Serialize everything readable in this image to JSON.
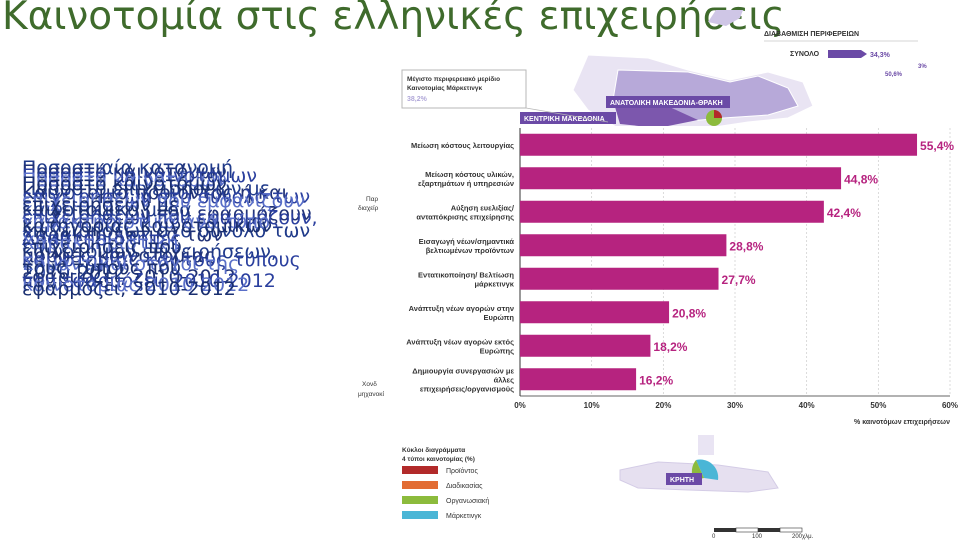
{
  "slide": {
    "title": "Καινοτομία στις ελληνικές επιχειρήσεις"
  },
  "captions": [
    {
      "lines": [
        "Ποσοστιαία κατανομή",
        "Ποσοστό επιχειρήσεων με",
        "καινοτομικό μέσα",
        "επιχειρήσεων στο σύνολο των",
        "καινοτόμων επιχειρήσεων,",
        "2010-2012"
      ],
      "color": "#1f3a8a"
    },
    {
      "lines": [
        "Ποσοστό καινοτόμων",
        "Καινοτομία προϊόντος ή και",
        "επιχειρήσεων που εφαρμόζουν",
        "Χαρακτηριστικά των",
        "μορφές καινοτομίας",
        "εφαρμόζει, 2010-2012"
      ],
      "color": "#223377"
    },
    {
      "lines": [
        "Ποσοστό μη καινοτόμων",
        "επιχειρήσεων στο σύνολο των",
        "επιχειρήσεων που εφαρμόζουν,",
        "Δραστηριότητες",
        "καινοτομίας και τους τύπους",
        "που εφαρμόζει, 2010-2012"
      ],
      "color": "#2a3f9e"
    },
    {
      "lines": [
        "Ποσοστό καινοτόμων",
        "επιχειρήσεων που εμφανίζουν",
        "χαρακτηριστικά ανά τύπο",
        "Χαρακτηριστική",
        "Σημαντικοί στόχοι της",
        "καινοτομίας 2010-2012"
      ],
      "color": "#5a6fc8"
    },
    {
      "lines": [
        "Ποσοστό καινοτόμων",
        "επιχειρήσεων με",
        "κατηγορίας καινοτομικών",
        "επιχειρήσεις που",
        "τους τύπους που",
        "εφαρμόζει, 2010-2012"
      ],
      "color": "#1a2f70"
    }
  ],
  "map": {
    "panel_title": "ΔΙΑΒΑΘΜΙΣΗ ΠΕΡΙΦΕΡΕΙΩΝ",
    "total_label": "ΣΥΝΟΛΟ",
    "total_value": "34,3%",
    "aux_value_1": "50,6%",
    "aux_value_2": "3%",
    "callout_title": "Μέγιστο περιφερειακό μερίδιο Καινοτομίας Μάρκετινγκ",
    "callout_value": "38,2%",
    "region_east": "ΑΝΑΤΟΛΙΚΗ ΜΑΚΕΔΟΝΙΑ-ΘΡΑΚΗ",
    "region_central": "ΚΕΝΤΡΙΚΗ ΜΑΚΕΔΟΝΙΑ",
    "region_crete": "ΚΡΗΤΗ",
    "left_cut_1": "Παρ",
    "left_cut_2": "διαχείρ",
    "left_cut_3": "Χονδ",
    "left_cut_4": "μηχανοκί",
    "legend_title": "Κύκλοι διαγράμματα 4 τύποι καινοτομίας (%)",
    "legend": [
      {
        "label": "Προϊόντος",
        "color": "#b22a2a"
      },
      {
        "label": "Διαδικασίας",
        "color": "#e26c33"
      },
      {
        "label": "Οργανωσιακή",
        "color": "#8cbb3c"
      },
      {
        "label": "Μάρκετινγκ",
        "color": "#4ab6d6"
      }
    ],
    "scale": [
      "0",
      "100",
      "200χλμ."
    ]
  },
  "chart_data": {
    "type": "bar",
    "orientation": "horizontal",
    "categories": [
      "Μείωση κόστους λειτουργίας",
      "Μείωση κόστους υλικών, εξαρτημάτων ή υπηρεσιών",
      "Αύξηση ευελιξίας/ ανταπόκρισης επιχείρησης",
      "Εισαγωγή νέων/σημαντικά βελτιωμένων προϊόντων",
      "Εντατικοποίηση/ Βελτίωση μάρκετινγκ",
      "Ανάπτυξη νέων αγορών στην Ευρώπη",
      "Ανάπτυξη νέων αγορών εκτός Ευρώπης",
      "Δημιουργία συνεργασιών με άλλες επιχειρήσεις/οργανισμούς"
    ],
    "values": [
      55.4,
      44.8,
      42.4,
      28.8,
      27.7,
      20.8,
      18.2,
      16.2
    ],
    "value_labels": [
      "55,4%",
      "44,8%",
      "42,4%",
      "28,8%",
      "27,7%",
      "20,8%",
      "18,2%",
      "16,2%"
    ],
    "xlim": [
      0,
      60
    ],
    "x_ticks": [
      "0%",
      "10%",
      "20%",
      "30%",
      "40%",
      "50%",
      "60%"
    ],
    "xlabel": "% καινοτόμων επιχειρήσεων",
    "bar_color": "#b6237f",
    "grid": true
  }
}
